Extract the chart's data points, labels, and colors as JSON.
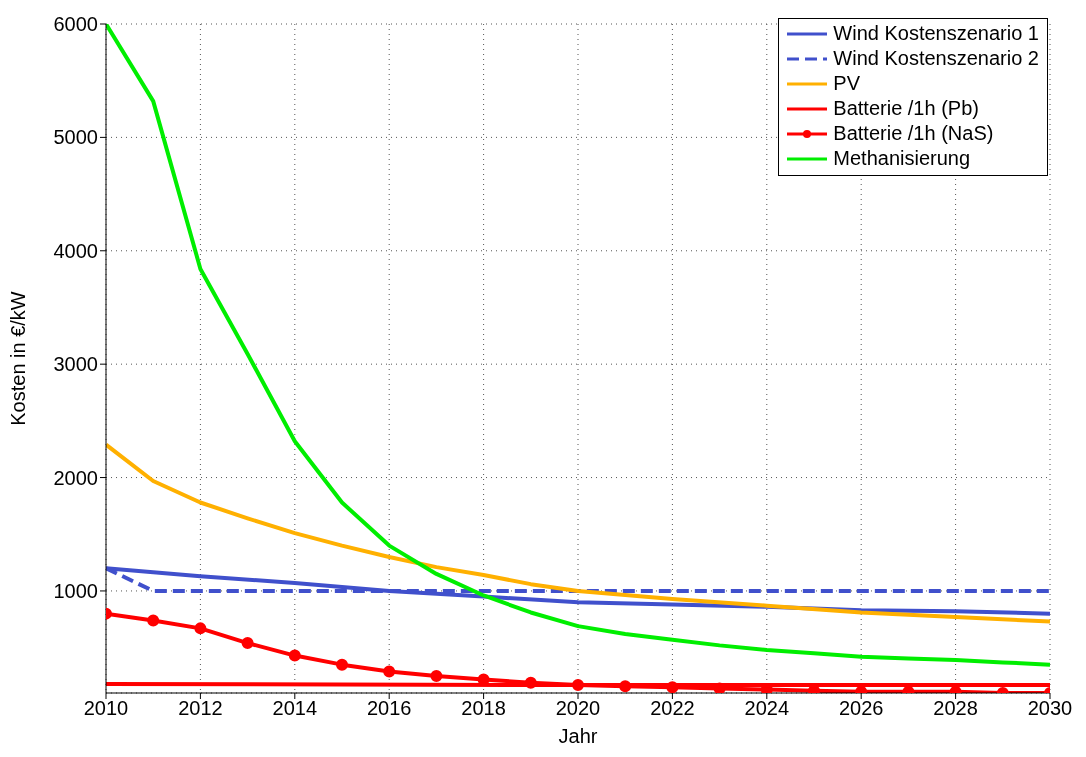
{
  "chart_data": {
    "type": "line",
    "xlabel": "Jahr",
    "ylabel": "Kosten in €/kW",
    "xlim": [
      2010,
      2030
    ],
    "xticks": [
      2010,
      2012,
      2014,
      2016,
      2018,
      2020,
      2022,
      2024,
      2026,
      2028,
      2030
    ],
    "ylim": [
      100,
      6000
    ],
    "yticks": [
      1000,
      2000,
      3000,
      4000,
      5000,
      6000
    ],
    "grid": true,
    "legend": "top right",
    "series": [
      {
        "name": "Wind Kostenszenario 1",
        "color": "#4050cc",
        "line_style": "solid",
        "x": [
          2010,
          2012,
          2014,
          2016,
          2018,
          2020,
          2022,
          2024,
          2026,
          2028,
          2030
        ],
        "values": [
          1200,
          1130,
          1070,
          1000,
          950,
          900,
          880,
          860,
          830,
          820,
          800
        ]
      },
      {
        "name": "Wind Kostenszenario 2",
        "color": "#4050cc",
        "line_style": "dashed",
        "x": [
          2010,
          2011,
          2030
        ],
        "values": [
          1200,
          1000,
          1000
        ]
      },
      {
        "name": "PV",
        "color": "#ffb000",
        "line_style": "solid",
        "x": [
          2010,
          2011,
          2012,
          2013,
          2014,
          2015,
          2016,
          2017,
          2018,
          2019,
          2020,
          2022,
          2024,
          2026,
          2028,
          2030
        ],
        "values": [
          2290,
          1970,
          1780,
          1640,
          1510,
          1400,
          1300,
          1210,
          1140,
          1060,
          1000,
          930,
          870,
          810,
          770,
          730
        ]
      },
      {
        "name": "Batterie /1h (Pb)",
        "color": "#ff0000",
        "line_style": "solid",
        "x": [
          2010,
          2020,
          2030
        ],
        "values": [
          180,
          170,
          170
        ]
      },
      {
        "name": "Batterie /1h (NaS)",
        "color": "#ff0000",
        "line_style": "solid",
        "marker": "circle",
        "x": [
          2010,
          2011,
          2012,
          2013,
          2014,
          2015,
          2016,
          2017,
          2018,
          2019,
          2020,
          2021,
          2022,
          2023,
          2024,
          2025,
          2026,
          2027,
          2028,
          2029,
          2030
        ],
        "values": [
          800,
          740,
          670,
          540,
          430,
          350,
          290,
          250,
          220,
          190,
          170,
          160,
          150,
          140,
          130,
          120,
          110,
          110,
          110,
          100,
          100
        ]
      },
      {
        "name": "Methanisierung",
        "color": "#00ee00",
        "line_style": "solid",
        "x": [
          2010,
          2011,
          2012,
          2013,
          2014,
          2015,
          2016,
          2017,
          2018,
          2019,
          2020,
          2021,
          2022,
          2023,
          2024,
          2025,
          2026,
          2027,
          2028,
          2029,
          2030
        ],
        "values": [
          6000,
          5320,
          3840,
          3090,
          2320,
          1780,
          1400,
          1150,
          960,
          810,
          690,
          620,
          570,
          520,
          480,
          450,
          420,
          405,
          390,
          370,
          350
        ]
      }
    ]
  }
}
